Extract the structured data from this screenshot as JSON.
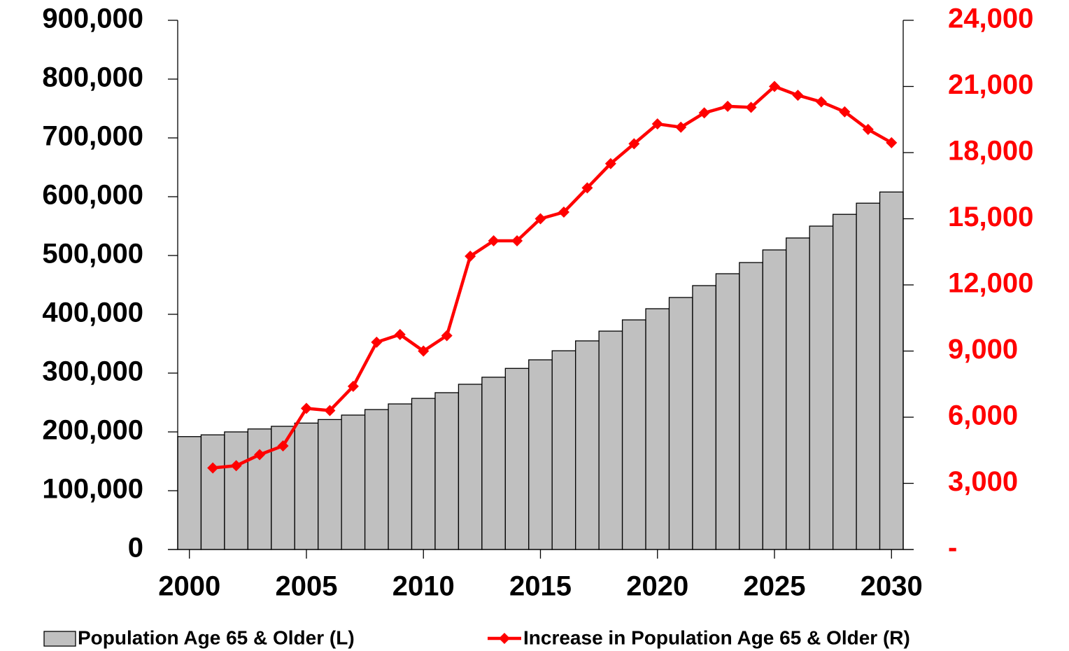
{
  "chart_data": {
    "type": "bar_line",
    "x": [
      2000,
      2001,
      2002,
      2003,
      2004,
      2005,
      2006,
      2007,
      2008,
      2009,
      2010,
      2011,
      2012,
      2013,
      2014,
      2015,
      2016,
      2017,
      2018,
      2019,
      2020,
      2021,
      2022,
      2023,
      2024,
      2025,
      2026,
      2027,
      2028,
      2029,
      2030
    ],
    "xlim": [
      1999.5,
      2030.5
    ],
    "xticks": [
      2000,
      2005,
      2010,
      2015,
      2020,
      2025,
      2030
    ],
    "series": [
      {
        "name": "Population Age 65 & Older (L)",
        "type": "bar",
        "color": "#c0c0c0",
        "values": [
          192000,
          195000,
          200000,
          205000,
          209500,
          215000,
          221000,
          228600,
          238000,
          247600,
          257000,
          266700,
          281000,
          293000,
          308000,
          322600,
          338000,
          354800,
          371400,
          390500,
          409500,
          428600,
          448800,
          469000,
          488000,
          509500,
          529800,
          550000,
          570000,
          589000,
          608000
        ]
      },
      {
        "name": "Increase in Population Age 65 & Older (R)",
        "type": "line",
        "color": "#ff0000",
        "axis": "y2",
        "values": [
          null,
          3700,
          3800,
          4300,
          4700,
          6400,
          6300,
          7400,
          9400,
          9750,
          9000,
          9700,
          13300,
          14000,
          14000,
          15000,
          15300,
          16400,
          17500,
          18400,
          19300,
          19150,
          19800,
          20100,
          20050,
          21000,
          20600,
          20300,
          19850,
          19050,
          18450
        ]
      }
    ],
    "ylim": [
      0,
      900000
    ],
    "yticks": [
      0,
      {
        "value": 100000,
        "label": "100,000"
      },
      {
        "value": 200000,
        "label": "200,000"
      },
      {
        "value": 300000,
        "label": "300,000"
      },
      {
        "value": 400000,
        "label": "400,000"
      },
      {
        "value": 500000,
        "label": "500,000"
      },
      {
        "value": 600000,
        "label": "600,000"
      },
      {
        "value": 700000,
        "label": "700,000"
      },
      {
        "value": 800000,
        "label": "800,000"
      },
      {
        "value": 900000,
        "label": "900,000"
      }
    ],
    "y2lim": [
      0,
      24000
    ],
    "y2ticks": [
      {
        "value": 0,
        "label": "-"
      },
      {
        "value": 3000,
        "label": "3,000"
      },
      {
        "value": 6000,
        "label": "6,000"
      },
      {
        "value": 9000,
        "label": "9,000"
      },
      {
        "value": 12000,
        "label": "12,000"
      },
      {
        "value": 15000,
        "label": "15,000"
      },
      {
        "value": 18000,
        "label": "18,000"
      },
      {
        "value": 21000,
        "label": "21,000"
      },
      {
        "value": 24000,
        "label": "24,000"
      }
    ],
    "y2color": "#ff0000",
    "legend": "bottom"
  }
}
